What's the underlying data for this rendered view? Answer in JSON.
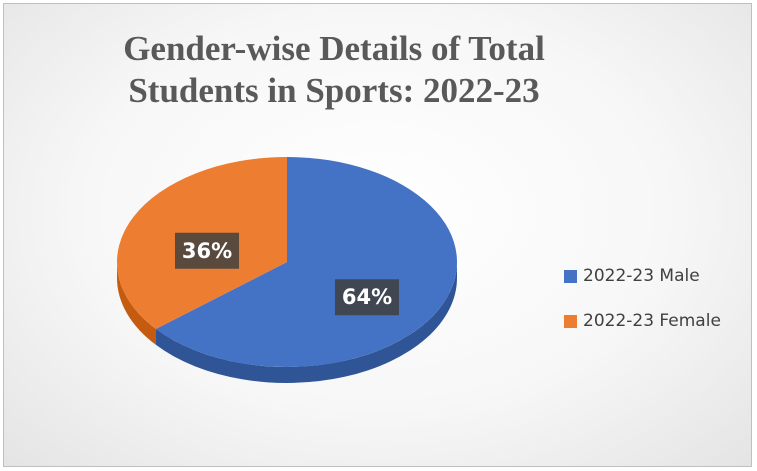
{
  "chart_data": {
    "type": "pie",
    "title": "Gender-wise Details of Total Students in Sports: 2022-23",
    "categories": [
      "2022-23 Male",
      "2022-23 Female"
    ],
    "values": [
      64,
      36
    ],
    "data_labels": [
      "64%",
      "36%"
    ],
    "colors": [
      "#4472c4",
      "#ed7d31"
    ],
    "side_colors": [
      "#2f5597",
      "#c55a11"
    ],
    "style": "3d",
    "legend_position": "right"
  }
}
